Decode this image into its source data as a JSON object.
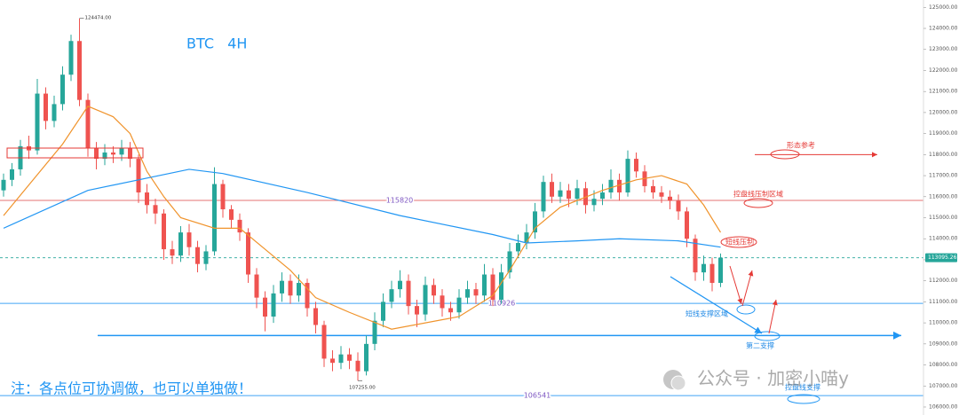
{
  "chart_data": {
    "type": "candlestick",
    "title": "BTC   4H",
    "open": [
      116300,
      116800,
      117300,
      118400,
      118200,
      120900,
      119600,
      120400,
      121800,
      123400,
      120600,
      118300,
      117800,
      118100,
      118000,
      118300,
      117800,
      116200,
      115600,
      115200,
      113500,
      113200,
      114300,
      113600,
      112800,
      113400,
      116600,
      115400,
      114900,
      114300,
      112300,
      111200,
      110300,
      111400,
      112000,
      111300,
      111900,
      110700,
      109900,
      108300,
      108100,
      108500,
      108200,
      107700,
      109000,
      110100,
      111000,
      111600,
      112000,
      110800,
      110400,
      111800,
      111300,
      110700,
      110500,
      111200,
      111600,
      111300,
      112300,
      111100,
      112400,
      113400,
      113800,
      114300,
      115300,
      116700,
      116000,
      116300,
      115900,
      116400,
      115600,
      115900,
      116200,
      116800,
      116200,
      117800,
      117200,
      116500,
      116200,
      116000,
      115800,
      115300,
      114000,
      112400,
      112800,
      111900
    ],
    "high": [
      117100,
      117600,
      118700,
      118900,
      121600,
      121200,
      120800,
      122200,
      123700,
      124474,
      120900,
      118600,
      118500,
      118400,
      118700,
      118600,
      118000,
      116600,
      115900,
      115400,
      113900,
      114600,
      114700,
      113900,
      113700,
      117400,
      116800,
      115600,
      115200,
      114500,
      112600,
      111500,
      111800,
      112400,
      112300,
      112300,
      112100,
      111000,
      110100,
      108700,
      108900,
      108800,
      108600,
      109400,
      110500,
      111400,
      112000,
      112500,
      112300,
      111100,
      112200,
      112100,
      111600,
      111000,
      111600,
      112000,
      111900,
      112800,
      112600,
      112800,
      113800,
      114200,
      114700,
      115700,
      117000,
      117100,
      116700,
      116600,
      116800,
      116700,
      116300,
      116600,
      117300,
      117100,
      118200,
      118100,
      117500,
      116800,
      116500,
      116300,
      116100,
      115500,
      114200,
      113200,
      113100,
      113300
    ],
    "low": [
      116000,
      116500,
      117000,
      117800,
      118000,
      119200,
      119300,
      120100,
      121500,
      120300,
      117900,
      117300,
      117500,
      117600,
      117700,
      117400,
      115700,
      115200,
      114700,
      113000,
      112800,
      112900,
      113200,
      112400,
      112500,
      113200,
      115000,
      114500,
      113900,
      111900,
      110700,
      109600,
      110000,
      111000,
      110900,
      111000,
      110300,
      109500,
      107900,
      107700,
      107800,
      107800,
      107255,
      107500,
      108700,
      109800,
      110700,
      111200,
      110400,
      109800,
      110100,
      110900,
      110300,
      110100,
      110200,
      110900,
      110900,
      111000,
      110800,
      110900,
      112100,
      113100,
      113500,
      114000,
      115000,
      115700,
      115700,
      115500,
      115600,
      115200,
      115300,
      115600,
      115900,
      115800,
      116000,
      116900,
      116200,
      115900,
      115700,
      115400,
      114900,
      113600,
      112000,
      112000,
      111500,
      111700
    ],
    "close": [
      116800,
      117300,
      118400,
      118200,
      120900,
      119600,
      120400,
      121800,
      123400,
      120600,
      118300,
      117800,
      118100,
      118000,
      118300,
      117800,
      116200,
      115600,
      115200,
      113500,
      113200,
      114300,
      113600,
      112800,
      113400,
      116600,
      115400,
      114900,
      114300,
      112300,
      111200,
      110300,
      111400,
      112000,
      111300,
      111900,
      110700,
      109900,
      108300,
      108100,
      108500,
      108200,
      107700,
      109000,
      110100,
      111000,
      111600,
      112000,
      110800,
      110400,
      111800,
      111300,
      110700,
      110500,
      111200,
      111600,
      111300,
      112300,
      111100,
      112400,
      113400,
      113800,
      114300,
      115300,
      116700,
      116000,
      116300,
      115900,
      116400,
      115600,
      115900,
      116200,
      116800,
      116200,
      117800,
      117200,
      116500,
      116200,
      116000,
      115800,
      115300,
      114000,
      112400,
      112800,
      111900,
      113100
    ],
    "up_color": "#26a69a",
    "down_color": "#ef5350",
    "lines": [
      {
        "x": [
          0,
          7,
          10,
          13,
          15,
          17,
          19,
          21,
          25,
          28,
          31,
          34,
          37,
          41,
          46,
          54,
          58,
          60,
          63,
          66,
          71,
          75,
          78,
          81,
          83,
          85
        ],
        "values": [
          115100,
          118500,
          120300,
          119800,
          119000,
          117200,
          116000,
          115000,
          114500,
          114500,
          113500,
          112500,
          111200,
          110500,
          109700,
          110300,
          111300,
          112500,
          114500,
          115500,
          116300,
          116800,
          117000,
          116600,
          115600,
          114300
        ],
        "color": "#f0932b"
      },
      {
        "x": [
          0,
          10,
          22,
          26,
          36,
          47,
          58,
          62,
          68,
          73,
          80,
          85
        ],
        "values": [
          114500,
          116300,
          117300,
          117100,
          116200,
          115100,
          114200,
          113800,
          113900,
          114000,
          113900,
          113600
        ],
        "color": "#2196f3"
      }
    ],
    "ylim": [
      105620,
      125350
    ],
    "yticks": [
      {
        "value": 106000,
        "label": "106000.00"
      },
      {
        "value": 107000,
        "label": "107000.00"
      },
      {
        "value": 108000,
        "label": "108000.00"
      },
      {
        "value": 109000,
        "label": "109000.00"
      },
      {
        "value": 110000,
        "label": "110000.00"
      },
      {
        "value": 111000,
        "label": "111000.00"
      },
      {
        "value": 112000,
        "label": "112000.00"
      },
      {
        "value": 113000,
        "label": "113000.00"
      },
      {
        "value": 114000,
        "label": "114000.00"
      },
      {
        "value": 115000,
        "label": "115000.00"
      },
      {
        "value": 116000,
        "label": "116000.00"
      },
      {
        "value": 117000,
        "label": "117000.00"
      },
      {
        "value": 118000,
        "label": "118000.00"
      },
      {
        "value": 119000,
        "label": "119000.00"
      },
      {
        "value": 120000,
        "label": "120000.00"
      },
      {
        "value": 121000,
        "label": "121000.00"
      },
      {
        "value": 122000,
        "label": "122000.00"
      },
      {
        "value": 123000,
        "label": "123000.00"
      },
      {
        "value": 124000,
        "label": "124000.00"
      },
      {
        "value": 125000,
        "label": "125000.00"
      }
    ],
    "price_annotations": [
      {
        "x": 9,
        "value": 124474,
        "label": "124474.00"
      },
      {
        "x": 42,
        "value": 107255,
        "label": "107255.00"
      }
    ],
    "current_price": 113095.26,
    "levels": [
      {
        "value": 118000,
        "color": "#e53935"
      },
      {
        "value": 115820,
        "color": "#e57373"
      },
      {
        "value": 110926,
        "color": "#42a5f5"
      },
      {
        "value": 109400,
        "color": "#2196f3"
      },
      {
        "value": 106541,
        "color": "#42a5f5"
      }
    ],
    "notes": [
      "形态参考",
      "控盘线压制区域",
      "短线压制",
      "短线支撑区域",
      "第二支撑",
      "控盘线支撑"
    ],
    "footnote": "注：各点位可协调做，也可以单独做！",
    "watermark": "公众号 · 加密小喵y"
  }
}
